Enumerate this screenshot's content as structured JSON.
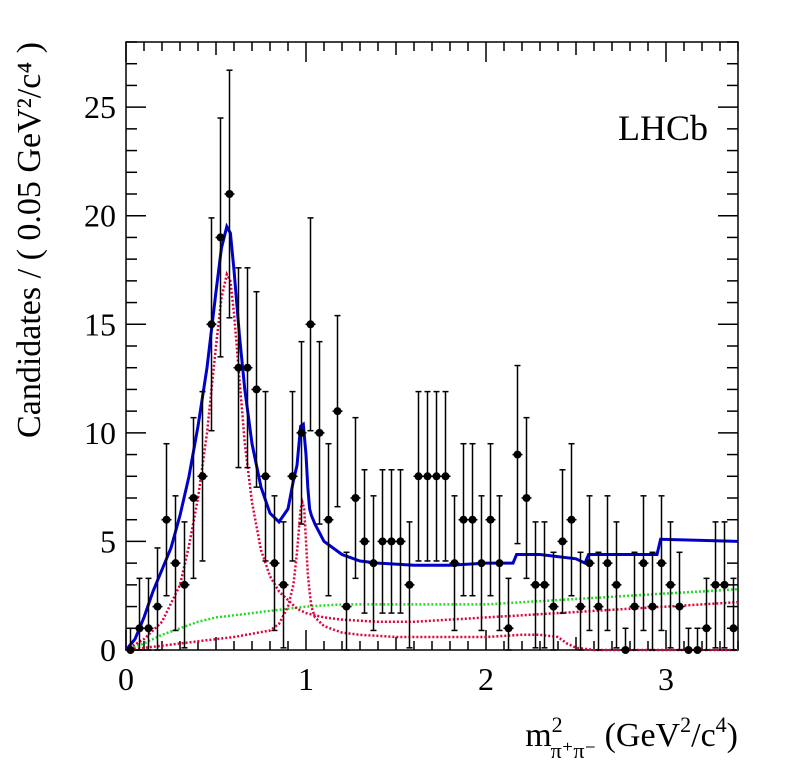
{
  "chart_data": {
    "type": "scatter",
    "annotation": "LHCb",
    "xlabel": {
      "main": "m",
      "sup": "2",
      "sub": "π⁺π⁻",
      "rest": " (GeV",
      "rest_sup": "2",
      "rest_end": "/c",
      "rest_sup2": "4",
      "close": ")"
    },
    "ylabel": "Candidates / ( 0.05 GeV²/c⁴ )",
    "xlim": [
      0,
      3.4
    ],
    "ylim": [
      0,
      28
    ],
    "x_ticks": [
      0,
      1,
      2,
      3
    ],
    "x_tick_labels": [
      "0",
      "1",
      "2",
      "3"
    ],
    "y_ticks": [
      0,
      5,
      10,
      15,
      20,
      25
    ],
    "y_tick_labels": [
      "0",
      "5",
      "10",
      "15",
      "20",
      "25"
    ],
    "colors": {
      "total": "#0000cc",
      "rho": "#e0003a",
      "f0": "#e0003a",
      "bkg": "#22dd22",
      "data": "#000000"
    },
    "data_points": {
      "x": [
        0.025,
        0.075,
        0.125,
        0.175,
        0.225,
        0.275,
        0.325,
        0.375,
        0.425,
        0.475,
        0.525,
        0.575,
        0.625,
        0.675,
        0.725,
        0.775,
        0.825,
        0.875,
        0.925,
        0.975,
        1.025,
        1.075,
        1.125,
        1.175,
        1.225,
        1.275,
        1.325,
        1.375,
        1.425,
        1.475,
        1.525,
        1.575,
        1.625,
        1.675,
        1.725,
        1.775,
        1.825,
        1.875,
        1.925,
        1.975,
        2.025,
        2.075,
        2.125,
        2.175,
        2.225,
        2.275,
        2.325,
        2.375,
        2.425,
        2.475,
        2.525,
        2.575,
        2.625,
        2.675,
        2.725,
        2.775,
        2.825,
        2.875,
        2.925,
        2.975,
        3.025,
        3.075,
        3.125,
        3.175,
        3.225,
        3.275,
        3.325,
        3.375
      ],
      "y": [
        0,
        1,
        1,
        2,
        6,
        4,
        3,
        7,
        8,
        15,
        19,
        21,
        13,
        13,
        12,
        8,
        4,
        3,
        8,
        10,
        15,
        10,
        6,
        11,
        2,
        7,
        5,
        4,
        5,
        5,
        5,
        3,
        8,
        8,
        8,
        8,
        4,
        6,
        6,
        4,
        6,
        4,
        1,
        9,
        7,
        3,
        3,
        2,
        5,
        6,
        2,
        4,
        2,
        4,
        3,
        0,
        2,
        4,
        2,
        4,
        3,
        2,
        0,
        0,
        1,
        3,
        3,
        1
      ],
      "err": [
        1.0,
        2.3,
        2.3,
        2.7,
        3.5,
        3.1,
        2.9,
        3.7,
        3.9,
        4.9,
        5.5,
        5.7,
        4.6,
        4.6,
        4.5,
        3.9,
        3.1,
        2.9,
        3.9,
        4.2,
        4.9,
        4.2,
        3.5,
        4.4,
        2.5,
        3.7,
        3.3,
        3.1,
        3.3,
        3.3,
        3.3,
        2.9,
        3.9,
        3.9,
        3.9,
        3.9,
        3.1,
        3.5,
        3.5,
        3.1,
        3.5,
        3.1,
        2.3,
        4.1,
        3.7,
        2.9,
        2.9,
        2.5,
        3.3,
        3.5,
        2.5,
        3.1,
        2.5,
        3.1,
        2.9,
        1.0,
        2.5,
        3.1,
        2.5,
        3.1,
        2.9,
        2.5,
        1.0,
        1.0,
        2.3,
        2.9,
        2.9,
        2.3
      ]
    },
    "series": [
      {
        "name": "",
        "style": "solid",
        "color": "#0000cc",
        "x": [
          0,
          0.05,
          0.1,
          0.15,
          0.2,
          0.25,
          0.3,
          0.35,
          0.4,
          0.45,
          0.5,
          0.53,
          0.56,
          0.58,
          0.6,
          0.63,
          0.66,
          0.7,
          0.75,
          0.8,
          0.85,
          0.9,
          0.93,
          0.95,
          0.97,
          0.985,
          1.0,
          1.01,
          1.02,
          1.03,
          1.05,
          1.1,
          1.2,
          1.3,
          1.4,
          1.6,
          1.8,
          2.0,
          2.15,
          2.17,
          2.3,
          2.5,
          2.55,
          2.57,
          2.9,
          2.95,
          2.97,
          3.4
        ],
        "y": [
          0,
          0.5,
          1.5,
          2.7,
          3.7,
          4.7,
          6.2,
          8.0,
          10.3,
          13.0,
          16.5,
          18.5,
          19.5,
          19.2,
          17.5,
          14.5,
          12.0,
          9.5,
          7.5,
          6.3,
          5.9,
          6.5,
          7.8,
          8.5,
          10.3,
          10.4,
          9.0,
          7.5,
          6.5,
          6.2,
          5.8,
          5.0,
          4.4,
          4.1,
          4.0,
          3.9,
          3.9,
          4.0,
          4.0,
          4.4,
          4.4,
          4.2,
          4.0,
          4.4,
          4.4,
          4.4,
          5.1,
          5.0
        ]
      },
      {
        "name": "",
        "style": "dotted",
        "color": "#e0003a",
        "x": [
          0,
          0.1,
          0.2,
          0.3,
          0.35,
          0.4,
          0.45,
          0.5,
          0.53,
          0.56,
          0.58,
          0.6,
          0.63,
          0.66,
          0.7,
          0.75,
          0.8,
          0.85,
          0.9,
          0.95,
          1.0,
          1.1,
          1.2,
          1.4,
          1.6,
          1.8,
          2.0,
          2.2,
          2.4,
          2.6,
          2.8,
          3.0,
          3.2,
          3.4
        ],
        "y": [
          0,
          0.5,
          1.3,
          3.0,
          4.8,
          7.0,
          10.0,
          14.0,
          16.2,
          17.3,
          17.0,
          15.5,
          12.5,
          9.5,
          6.8,
          4.6,
          3.4,
          2.7,
          2.3,
          1.9,
          1.7,
          1.5,
          1.4,
          1.3,
          1.3,
          1.4,
          1.5,
          1.6,
          1.7,
          1.8,
          1.9,
          2.0,
          2.1,
          2.2
        ]
      },
      {
        "name": "",
        "style": "dotted",
        "color": "#e0003a",
        "x": [
          0,
          0.2,
          0.4,
          0.6,
          0.8,
          0.85,
          0.9,
          0.93,
          0.95,
          0.97,
          0.98,
          0.99,
          1.0,
          1.01,
          1.02,
          1.03,
          1.05,
          1.1,
          1.2,
          1.3,
          1.5,
          1.8,
          2.0,
          2.2,
          2.3,
          2.4,
          2.45,
          2.5,
          2.6,
          3.0,
          3.4
        ],
        "y": [
          0,
          0.2,
          0.4,
          0.6,
          0.9,
          1.2,
          2.0,
          3.0,
          4.5,
          6.5,
          6.8,
          6.5,
          5.0,
          3.5,
          2.7,
          2.0,
          1.5,
          1.1,
          0.8,
          0.7,
          0.6,
          0.6,
          0.6,
          0.7,
          0.7,
          0.6,
          0.3,
          0.1,
          0.0,
          0.0,
          0.0
        ]
      },
      {
        "name": "",
        "style": "dotted",
        "color": "#22dd22",
        "x": [
          0,
          0.1,
          0.2,
          0.3,
          0.4,
          0.5,
          0.6,
          0.8,
          1.0,
          1.2,
          1.4,
          1.6,
          1.8,
          2.0,
          2.2,
          2.4,
          2.6,
          2.8,
          3.0,
          3.2,
          3.4
        ],
        "y": [
          0,
          0.3,
          0.7,
          1.0,
          1.3,
          1.5,
          1.6,
          1.8,
          2.0,
          2.1,
          2.1,
          2.1,
          2.1,
          2.1,
          2.2,
          2.3,
          2.4,
          2.5,
          2.6,
          2.7,
          2.8
        ]
      }
    ]
  }
}
